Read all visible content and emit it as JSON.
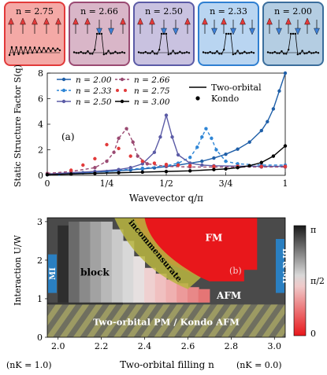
{
  "insets": [
    {
      "label": "n = 2.75",
      "fill": "#f4a9a6",
      "stroke": "#e23a3a",
      "arrows": "rrrrr",
      "profile": "osc"
    },
    {
      "label": "n = 2.66",
      "fill": "#d9b6c8",
      "stroke": "#9a4a72",
      "arrows": "rrbbr",
      "profile": "peak"
    },
    {
      "label": "n = 2.50",
      "fill": "#c9c2e0",
      "stroke": "#5b5ba6",
      "arrows": "rrbbr",
      "profile": "peak"
    },
    {
      "label": "n = 2.33",
      "fill": "#b9d5f1",
      "stroke": "#2f7fd1",
      "arrows": "rbrbrb",
      "profile": "peak"
    },
    {
      "label": "n = 2.00",
      "fill": "#b4cde2",
      "stroke": "#3b6e9c",
      "arrows": "rbrbrb",
      "profile": "peak"
    }
  ],
  "colors": {
    "n200": "#1f5fa8",
    "n233": "#2f86d6",
    "n250": "#5b5ba6",
    "n266": "#9a4a72",
    "n275": "#e23a3a",
    "n300": "#000000",
    "incommensurate": "#b9b53f",
    "fm": "#e8171b",
    "mi": "#2a7fc1"
  },
  "chart_data": [
    {
      "type": "line",
      "panel": "(a)",
      "ylabel": "Static Structure Factor S(q)",
      "xlabel": "Wavevector q/π",
      "xlim": [
        0,
        1
      ],
      "ylim": [
        0,
        8
      ],
      "xticks": [
        "0",
        "1/4",
        "1/2",
        "3/4",
        "1"
      ],
      "yticks": [
        "0",
        "2",
        "4",
        "6",
        "8"
      ],
      "legend": [
        {
          "label": "n = 2.00",
          "series": "n200",
          "style": "solid"
        },
        {
          "label": "n = 2.66",
          "series": "n266",
          "style": "dash"
        },
        {
          "label": "n = 2.33",
          "series": "n233",
          "style": "dash"
        },
        {
          "label": "n = 2.75",
          "series": "n275",
          "style": "dots"
        },
        {
          "label": "n = 2.50",
          "series": "n250",
          "style": "solid"
        },
        {
          "label": "n = 3.00",
          "series": "n300",
          "style": "solid"
        }
      ],
      "legend2": [
        "Two-orbital",
        "Kondo"
      ],
      "series": [
        {
          "key": "n200",
          "name": "n = 2.00",
          "x": [
            0,
            0.05,
            0.1,
            0.15,
            0.2,
            0.25,
            0.3,
            0.35,
            0.4,
            0.45,
            0.5,
            0.55,
            0.6,
            0.65,
            0.7,
            0.75,
            0.8,
            0.85,
            0.9,
            0.925,
            0.95,
            0.975,
            1.0
          ],
          "y": [
            0.05,
            0.1,
            0.15,
            0.2,
            0.25,
            0.3,
            0.35,
            0.42,
            0.5,
            0.58,
            0.68,
            0.8,
            0.95,
            1.1,
            1.35,
            1.65,
            2.05,
            2.6,
            3.5,
            4.2,
            5.2,
            6.6,
            8.0
          ]
        },
        {
          "key": "n233",
          "name": "n = 2.33",
          "x": [
            0,
            0.1,
            0.2,
            0.3,
            0.4,
            0.5,
            0.55,
            0.6,
            0.63,
            0.65,
            0.667,
            0.69,
            0.71,
            0.75,
            0.8,
            0.9,
            1.0
          ],
          "y": [
            0.1,
            0.18,
            0.28,
            0.4,
            0.55,
            0.75,
            0.95,
            1.4,
            2.2,
            3.0,
            3.65,
            2.9,
            2.0,
            1.1,
            0.9,
            0.8,
            0.8
          ]
        },
        {
          "key": "n250",
          "name": "n = 2.50",
          "x": [
            0,
            0.1,
            0.2,
            0.3,
            0.35,
            0.4,
            0.45,
            0.475,
            0.5,
            0.525,
            0.55,
            0.6,
            0.65,
            0.7,
            0.8,
            0.9,
            1.0
          ],
          "y": [
            0.1,
            0.2,
            0.3,
            0.45,
            0.6,
            0.9,
            1.8,
            3.0,
            4.7,
            3.0,
            1.6,
            0.95,
            0.8,
            0.75,
            0.72,
            0.7,
            0.7
          ]
        },
        {
          "key": "n266",
          "name": "n = 2.66",
          "x": [
            0,
            0.1,
            0.2,
            0.25,
            0.28,
            0.3,
            0.333,
            0.36,
            0.38,
            0.42,
            0.5,
            0.6,
            0.7,
            0.8,
            0.9,
            1.0
          ],
          "y": [
            0.15,
            0.3,
            0.6,
            1.1,
            1.8,
            2.9,
            3.65,
            2.6,
            1.5,
            0.9,
            0.7,
            0.65,
            0.65,
            0.65,
            0.65,
            0.65
          ]
        },
        {
          "key": "n275",
          "name": "n = 2.75",
          "x": [
            0.1,
            0.15,
            0.2,
            0.25,
            0.3,
            0.35,
            0.4,
            0.45,
            0.5,
            0.55,
            0.6,
            0.7,
            0.8,
            0.9,
            1.0
          ],
          "y": [
            0.4,
            0.8,
            1.3,
            2.4,
            2.1,
            1.5,
            1.1,
            0.95,
            0.85,
            0.8,
            0.75,
            0.7,
            0.7,
            0.7,
            0.7
          ]
        },
        {
          "key": "n300",
          "name": "n = 3.00",
          "x": [
            0,
            0.1,
            0.2,
            0.3,
            0.4,
            0.5,
            0.6,
            0.7,
            0.75,
            0.8,
            0.85,
            0.9,
            0.95,
            1.0
          ],
          "y": [
            0.05,
            0.1,
            0.15,
            0.2,
            0.25,
            0.3,
            0.35,
            0.45,
            0.5,
            0.6,
            0.75,
            1.0,
            1.5,
            2.3
          ]
        }
      ]
    },
    {
      "type": "heatmap",
      "panel": "(b)",
      "ylabel": "Interaction U/W",
      "xlabel": "Two-orbital filling n",
      "xlim": [
        1.95,
        3.05
      ],
      "ylim": [
        0,
        3.1
      ],
      "xticks": [
        "2.0",
        "2.2",
        "2.4",
        "2.6",
        "2.8",
        "3.0"
      ],
      "yticks": [
        "0",
        "1",
        "2",
        "3"
      ],
      "colorbar_ticks": [
        "π",
        "π/2",
        "0"
      ],
      "regions": {
        "fm": "FM",
        "incommensurate": "incommensurate",
        "block": "block",
        "afm": "AFM",
        "pm": "Two-orbital PM / Kondo AFM",
        "mi_left": "MI",
        "bi_mi": "BI & MI"
      },
      "nk_left": "(nK = 1.0)",
      "nk_right": "(nK = 0.0)"
    }
  ]
}
